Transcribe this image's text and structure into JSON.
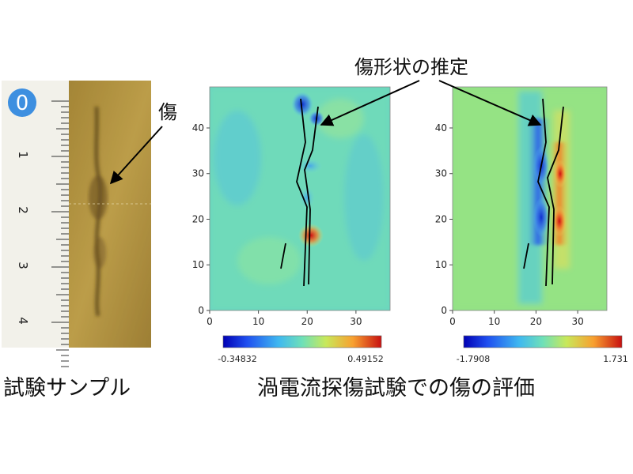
{
  "labels": {
    "flaw": "傷",
    "shape_estimate": "傷形状の推定",
    "test_sample": "試験サンプル",
    "evaluation": "渦電流探傷試験での傷の評価"
  },
  "ruler": {
    "zero_badge": "0",
    "numbers": [
      "1",
      "2",
      "3",
      "4"
    ]
  },
  "plots": [
    {
      "x_ticks": [
        "0",
        "10",
        "20",
        "30"
      ],
      "y_ticks": [
        "0",
        "10",
        "20",
        "30",
        "40"
      ],
      "colorbar_min": "-0.34832",
      "colorbar_max": "0.49152"
    },
    {
      "x_ticks": [
        "0",
        "10",
        "20",
        "30"
      ],
      "y_ticks": [
        "0",
        "10",
        "20",
        "30",
        "40"
      ],
      "colorbar_min": "-1.7908",
      "colorbar_max": "1.731"
    }
  ],
  "colors": {
    "badge": "#3d8fe0",
    "sample_gold": "#b89a44",
    "ruler_bg": "#f2f1ea"
  }
}
